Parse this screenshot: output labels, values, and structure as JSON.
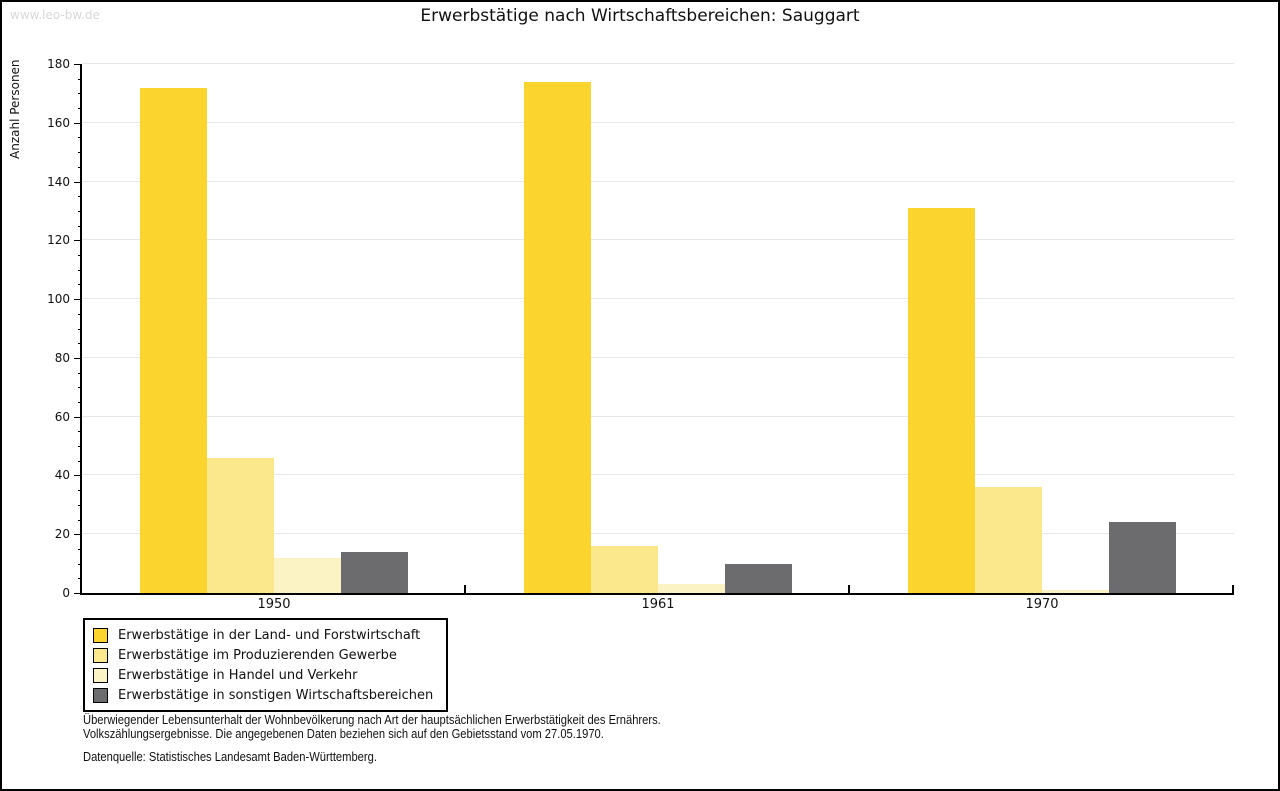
{
  "watermark": "www.leo-bw.de",
  "title": "Erwerbstätige nach Wirtschaftsbereichen: Sauggart",
  "chart_data": {
    "type": "bar",
    "title": "Erwerbstätige nach Wirtschaftsbereichen: Sauggart",
    "xlabel": "",
    "ylabel": "Anzahl Personen",
    "ylim": [
      0,
      180
    ],
    "ytick_step": 20,
    "yminor_step": 5,
    "grid": "horizontal",
    "legend_position": "bottom-left",
    "categories": [
      "1950",
      "1961",
      "1970"
    ],
    "series": [
      {
        "name": "Erwerbstätige in der Land- und Forstwirtschaft",
        "color": "#FBD42D",
        "values": [
          172,
          174,
          131
        ]
      },
      {
        "name": "Erwerbstätige im Produzierenden Gewerbe",
        "color": "#FBE88D",
        "values": [
          46,
          16,
          36
        ]
      },
      {
        "name": "Erwerbstätige in Handel und Verkehr",
        "color": "#FBF3C3",
        "values": [
          12,
          3,
          1
        ]
      },
      {
        "name": "Erwerbstätige in sonstigen Wirtschaftsbereichen",
        "color": "#6C6C6E",
        "values": [
          14,
          10,
          24
        ]
      }
    ]
  },
  "footer": {
    "line1": "Überwiegender Lebensunterhalt der Wohnbevölkerung nach Art der hauptsächlichen Erwerbstätigkeit des Ernährers.",
    "line2": "Volkszählungsergebnisse. Die angegebenen Daten beziehen sich auf den Gebietsstand vom 27.05.1970.",
    "source": "Datenquelle: Statistisches Landesamt Baden-Württemberg."
  }
}
